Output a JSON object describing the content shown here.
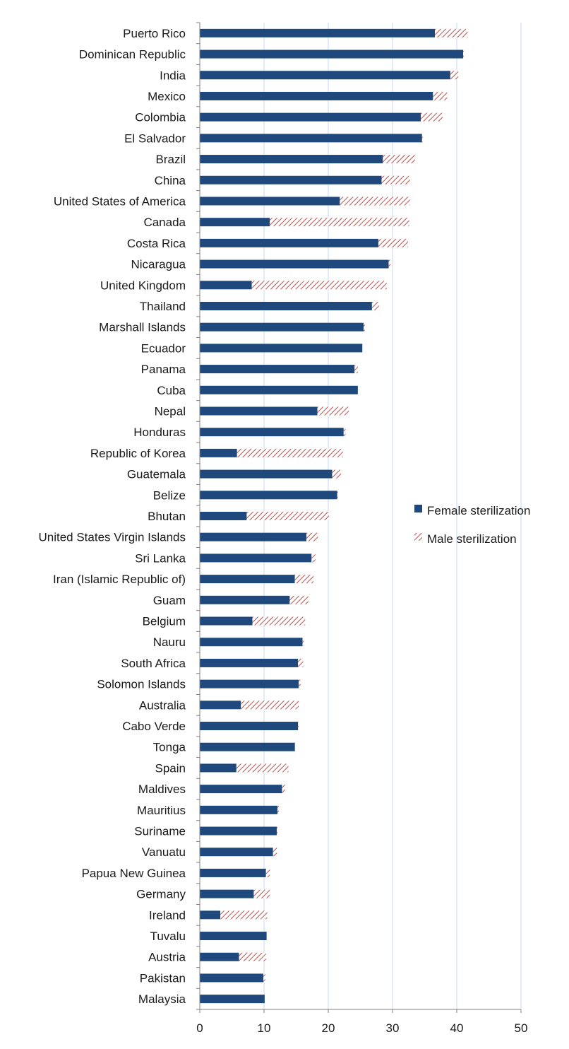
{
  "chart_data": {
    "type": "bar",
    "orientation": "horizontal",
    "stacked": true,
    "categories": [
      "Puerto Rico",
      "Dominican Republic",
      "India",
      "Mexico",
      "Colombia",
      "El Salvador",
      "Brazil",
      "China",
      "United States of America",
      "Canada",
      "Costa Rica",
      "Nicaragua",
      "United Kingdom",
      "Thailand",
      "Marshall Islands",
      "Ecuador",
      "Panama",
      "Cuba",
      "Nepal",
      "Honduras",
      "Republic of Korea",
      "Guatemala",
      "Belize",
      "Bhutan",
      "United States Virgin Islands",
      "Sri Lanka",
      "Iran (Islamic Republic of)",
      "Guam",
      "Belgium",
      "Nauru",
      "South Africa",
      "Solomon Islands",
      "Australia",
      "Cabo Verde",
      "Tonga",
      "Spain",
      "Maldives",
      "Mauritius",
      "Suriname",
      "Vanuatu",
      "Papua New Guinea",
      "Germany",
      "Ireland",
      "Tuvalu",
      "Austria",
      "Pakistan",
      "Malaysia"
    ],
    "series": [
      {
        "name": "Female sterilization",
        "color": "#1f497d",
        "pattern": "solid",
        "values": [
          36.6,
          41.0,
          39.0,
          36.3,
          34.4,
          34.6,
          28.5,
          28.3,
          21.8,
          10.9,
          27.8,
          29.4,
          8.1,
          26.8,
          25.5,
          25.3,
          24.1,
          24.6,
          18.3,
          22.4,
          5.8,
          20.6,
          21.4,
          7.3,
          16.6,
          17.4,
          14.8,
          14.0,
          8.2,
          16.0,
          15.3,
          15.4,
          6.4,
          15.3,
          14.8,
          5.7,
          12.8,
          12.1,
          12.0,
          11.4,
          10.3,
          8.4,
          3.2,
          10.4,
          6.1,
          9.9,
          10.1
        ]
      },
      {
        "name": "Male sterilization",
        "color": "#c0504d",
        "pattern": "hatched",
        "values": [
          5.1,
          0.1,
          1.2,
          2.2,
          3.4,
          0.1,
          5.0,
          4.4,
          10.9,
          21.7,
          4.6,
          0.3,
          21.0,
          1.1,
          0.2,
          0.0,
          0.5,
          0.0,
          4.9,
          0.3,
          16.5,
          1.4,
          0.1,
          12.8,
          1.8,
          0.6,
          2.9,
          2.9,
          8.2,
          0.2,
          0.8,
          0.3,
          9.0,
          0.1,
          0.0,
          8.1,
          0.5,
          0.2,
          0.1,
          0.6,
          0.6,
          2.5,
          7.3,
          0.0,
          4.2,
          0.3,
          0.0
        ]
      }
    ],
    "xlim": [
      0,
      50
    ],
    "xticks": [
      0,
      10,
      20,
      30,
      40,
      50
    ],
    "grid": "vertical",
    "legend": "right",
    "title": "",
    "xlabel": "",
    "ylabel": ""
  }
}
